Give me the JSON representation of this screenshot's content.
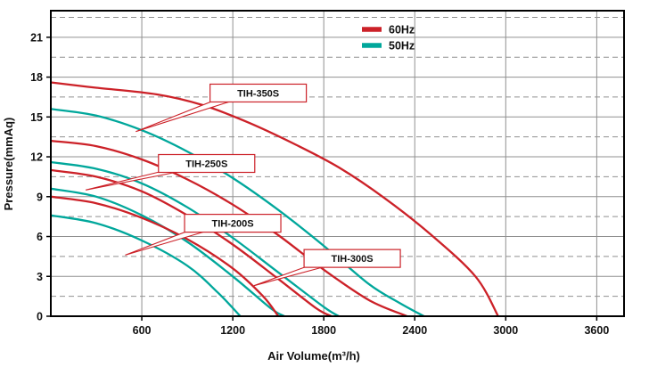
{
  "chart_data": {
    "type": "line",
    "title": "",
    "xlabel": "Air Volume(m³/h)",
    "ylabel": "Pressure(mmAq)",
    "xlim": [
      0,
      3780
    ],
    "ylim": [
      0,
      23
    ],
    "x_ticks": [
      600,
      1200,
      1800,
      2400,
      3000,
      3600
    ],
    "y_ticks": [
      0,
      3,
      6,
      9,
      12,
      15,
      18,
      21
    ],
    "y_dashed_lines": [
      1.5,
      4.5,
      7.5,
      10.5,
      13.5,
      16.5,
      19.5,
      22.5
    ],
    "grid": true,
    "colors": {
      "60hz": "#cc2128",
      "50hz": "#00a79b",
      "grid": "#909090",
      "border": "#000000",
      "callout_border": "#cc2128"
    },
    "legend": [
      {
        "label": "60Hz",
        "color": "#cc2128"
      },
      {
        "label": "50Hz",
        "color": "#00a79b"
      }
    ],
    "legend_position": "top-right-inside",
    "series": [
      {
        "name": "TIH-350S 60Hz",
        "model": "TIH-350S",
        "freq": "60Hz",
        "color": "#cc2128",
        "points": [
          [
            0,
            17.6
          ],
          [
            300,
            17.2
          ],
          [
            700,
            16.7
          ],
          [
            1000,
            15.9
          ],
          [
            1300,
            14.6
          ],
          [
            1600,
            13.0
          ],
          [
            1900,
            11.2
          ],
          [
            2200,
            8.9
          ],
          [
            2500,
            6.2
          ],
          [
            2800,
            3.0
          ],
          [
            2950,
            0
          ]
        ]
      },
      {
        "name": "TIH-350S 50Hz",
        "model": "TIH-350S",
        "freq": "50Hz",
        "color": "#00a79b",
        "points": [
          [
            0,
            15.6
          ],
          [
            300,
            15.1
          ],
          [
            600,
            14.0
          ],
          [
            900,
            12.4
          ],
          [
            1200,
            10.4
          ],
          [
            1500,
            8.0
          ],
          [
            1800,
            5.3
          ],
          [
            2100,
            2.4
          ],
          [
            2300,
            1.0
          ],
          [
            2460,
            0
          ]
        ]
      },
      {
        "name": "TIH-300S 60Hz",
        "model": "TIH-300S",
        "freq": "60Hz",
        "color": "#cc2128",
        "points": [
          [
            0,
            13.2
          ],
          [
            300,
            12.8
          ],
          [
            600,
            11.8
          ],
          [
            900,
            10.3
          ],
          [
            1200,
            8.4
          ],
          [
            1500,
            6.1
          ],
          [
            1800,
            3.5
          ],
          [
            2100,
            1.2
          ],
          [
            2350,
            0
          ]
        ]
      },
      {
        "name": "TIH-300S 50Hz",
        "model": "TIH-300S",
        "freq": "50Hz",
        "color": "#00a79b",
        "points": [
          [
            0,
            11.6
          ],
          [
            300,
            11.1
          ],
          [
            600,
            10.0
          ],
          [
            900,
            8.2
          ],
          [
            1200,
            5.9
          ],
          [
            1500,
            3.3
          ],
          [
            1800,
            0.7
          ],
          [
            1900,
            0
          ]
        ]
      },
      {
        "name": "TIH-250S 60Hz",
        "model": "TIH-250S",
        "freq": "60Hz",
        "color": "#cc2128",
        "points": [
          [
            0,
            11.0
          ],
          [
            300,
            10.5
          ],
          [
            600,
            9.4
          ],
          [
            900,
            7.6
          ],
          [
            1200,
            5.4
          ],
          [
            1500,
            2.8
          ],
          [
            1750,
            0.6
          ],
          [
            1850,
            0
          ]
        ]
      },
      {
        "name": "TIH-250S 50Hz",
        "model": "TIH-250S",
        "freq": "50Hz",
        "color": "#00a79b",
        "points": [
          [
            0,
            9.6
          ],
          [
            300,
            9.0
          ],
          [
            600,
            7.6
          ],
          [
            900,
            5.6
          ],
          [
            1200,
            3.0
          ],
          [
            1450,
            0.6
          ],
          [
            1540,
            0
          ]
        ]
      },
      {
        "name": "TIH-200S 60Hz",
        "model": "TIH-200S",
        "freq": "60Hz",
        "color": "#cc2128",
        "points": [
          [
            0,
            9.0
          ],
          [
            300,
            8.5
          ],
          [
            600,
            7.4
          ],
          [
            900,
            5.8
          ],
          [
            1200,
            3.6
          ],
          [
            1400,
            1.5
          ],
          [
            1500,
            0
          ]
        ]
      },
      {
        "name": "TIH-200S 50Hz",
        "model": "TIH-200S",
        "freq": "50Hz",
        "color": "#00a79b",
        "points": [
          [
            0,
            7.6
          ],
          [
            300,
            7.0
          ],
          [
            600,
            5.7
          ],
          [
            900,
            3.8
          ],
          [
            1100,
            1.8
          ],
          [
            1250,
            0
          ]
        ]
      }
    ],
    "callouts": [
      {
        "label": "TIH-350S",
        "box_x": 1050,
        "box_y": 16.8,
        "target_x": 560,
        "target_y": 13.9
      },
      {
        "label": "TIH-250S",
        "box_x": 710,
        "box_y": 11.5,
        "target_x": 230,
        "target_y": 9.5
      },
      {
        "label": "TIH-200S",
        "box_x": 882,
        "box_y": 7.0,
        "target_x": 490,
        "target_y": 4.6
      },
      {
        "label": "TIH-300S",
        "box_x": 1670,
        "box_y": 4.35,
        "target_x": 1340,
        "target_y": 2.3
      }
    ]
  }
}
